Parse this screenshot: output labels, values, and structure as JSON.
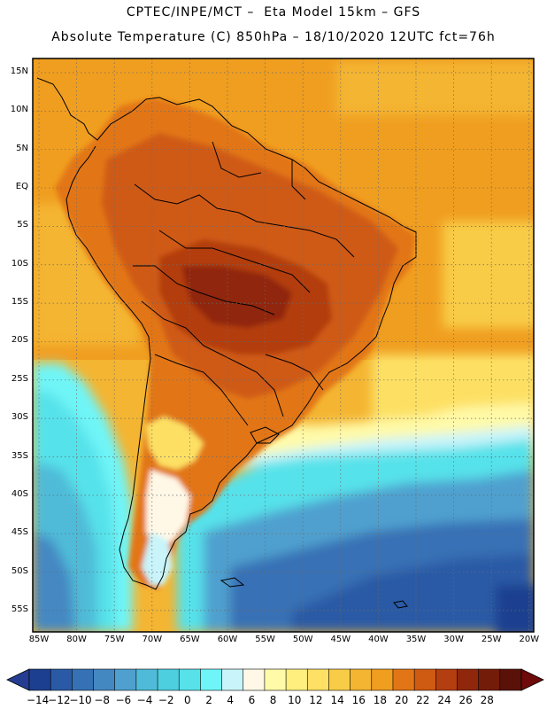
{
  "header": {
    "line1": "CPTEC/INPE/MCT –  Eta Model 15km – GFS",
    "line2": "Absolute Temperature (C) 850hPa – 18/10/2020 12UTC fct=76h"
  },
  "axes": {
    "lat_labels": [
      "15N",
      "10N",
      "5N",
      "EQ",
      "5S",
      "10S",
      "15S",
      "20S",
      "25S",
      "30S",
      "35S",
      "40S",
      "45S",
      "50S",
      "55S"
    ],
    "lon_labels": [
      "85W",
      "80W",
      "75W",
      "70W",
      "65W",
      "60W",
      "55W",
      "50W",
      "45W",
      "40W",
      "35W",
      "30W",
      "25W",
      "20W"
    ]
  },
  "colorbar": {
    "labels": [
      "-14",
      "-12",
      "-10",
      "-8",
      "-6",
      "-4",
      "-2",
      "0",
      "2",
      "4",
      "6",
      "8",
      "10",
      "12",
      "14",
      "16",
      "18",
      "20",
      "22",
      "24",
      "26",
      "28"
    ],
    "colors": [
      "#1d3f8f",
      "#2a5aa5",
      "#3771b5",
      "#4488c2",
      "#4fa0cf",
      "#4fbbd8",
      "#4dcfe0",
      "#57e2ea",
      "#6ff5f7",
      "#c8f4fa",
      "#fff8e6",
      "#fffaa8",
      "#ffef7e",
      "#fde064",
      "#f8cc46",
      "#f4b532",
      "#f09e20",
      "#e27616",
      "#cf5a12",
      "#b33e10",
      "#90270c",
      "#741c0a",
      "#5a1208"
    ],
    "under_color": "#243d92",
    "over_color": "#6e0a0a"
  }
}
